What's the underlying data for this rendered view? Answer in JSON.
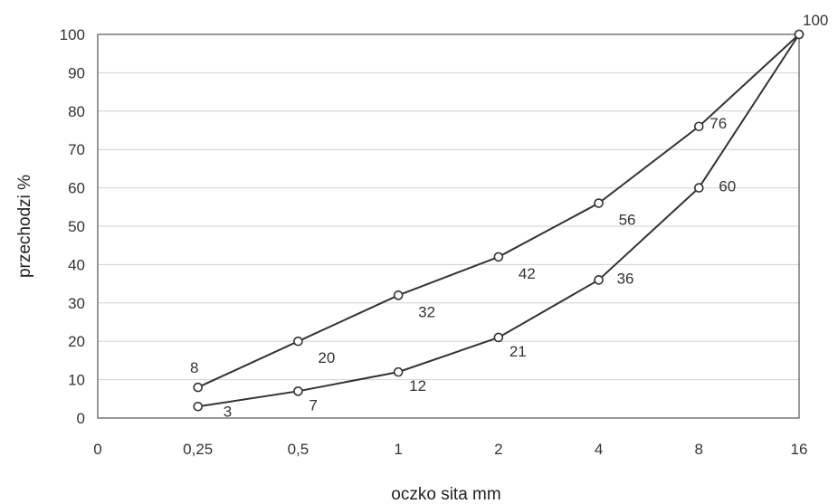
{
  "chart_data": {
    "type": "line",
    "title": "",
    "xlabel": "oczko sita mm",
    "ylabel": "przechodzi %",
    "x_categories": [
      "0",
      "0,25",
      "0,5",
      "1",
      "2",
      "4",
      "8",
      "16"
    ],
    "y_ticks": [
      0,
      10,
      20,
      30,
      40,
      50,
      60,
      70,
      80,
      90,
      100
    ],
    "ylim": [
      0,
      100
    ],
    "grid": "horizontal",
    "legend": "none",
    "series": [
      {
        "x": [
          "0,25",
          "0,5",
          "1",
          "2",
          "4",
          "8",
          "16"
        ],
        "values": [
          8,
          20,
          32,
          42,
          56,
          76,
          100
        ],
        "labels": [
          "8",
          "20",
          "32",
          "42",
          "56",
          "76",
          "100"
        ]
      },
      {
        "x": [
          "0,25",
          "0,5",
          "1",
          "2",
          "4",
          "8",
          "16"
        ],
        "values": [
          3,
          7,
          12,
          21,
          36,
          60,
          100
        ],
        "labels": [
          "3",
          "7",
          "12",
          "21",
          "36",
          "60",
          ""
        ]
      }
    ],
    "colors": {
      "line": "#333333",
      "grid": "#d0d0d0",
      "marker_fill": "#ffffff"
    }
  }
}
